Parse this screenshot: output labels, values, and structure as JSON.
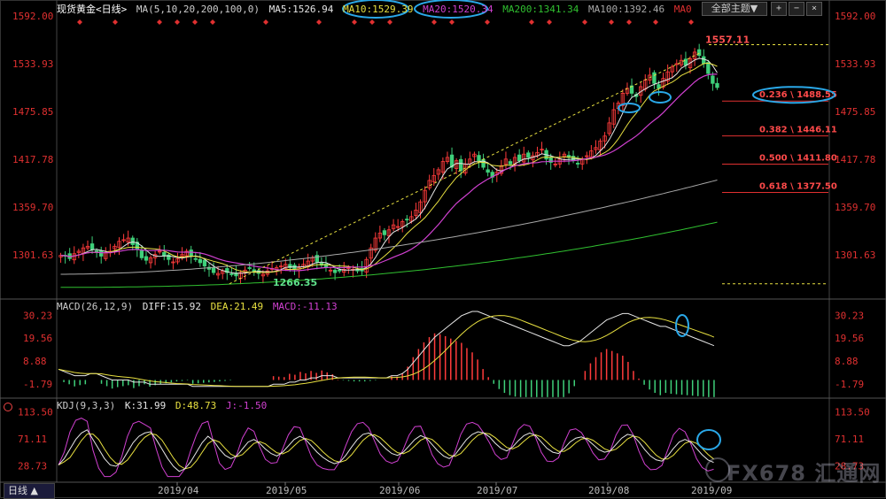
{
  "header": {
    "title": "现货黄金<日线>",
    "ma_params": "MA(5,10,20,200,100,0)",
    "ma5": "MA5:1526.94",
    "ma10": "MA10:1529.39",
    "ma20": "MA20:1520.34",
    "ma200": "MA200:1341.34",
    "ma100": "MA100:1392.46",
    "ma0": "MA0",
    "theme_button": "全部主题▼"
  },
  "colors": {
    "up": "#ff3b3b",
    "down": "#3fd07a",
    "ma5": "#e6e6e6",
    "ma10": "#e8e040",
    "ma20": "#d040d0",
    "ma200": "#30c030",
    "ma100": "#a8a8a8",
    "fib": "#e03030",
    "trend": "#e8e040",
    "highlight": "#2aa8e8",
    "axis_text": "#e03030",
    "date_text": "#bbbbbb"
  },
  "price_axis": {
    "labels": [
      "1592.00",
      "1533.93",
      "1475.85",
      "1417.78",
      "1359.70",
      "1301.63"
    ]
  },
  "annotations": {
    "high": "1557.11",
    "low": "1266.35",
    "fib": [
      "0.236 \\ 1488.55",
      "0.382 \\ 1446.11",
      "0.500 \\ 1411.80",
      "0.618 \\ 1377.50"
    ]
  },
  "macd": {
    "header_params": "MACD(26,12,9)",
    "diff": "DIFF:15.92",
    "dea": "DEA:21.49",
    "macd": "MACD:-11.13",
    "axis": [
      "30.23",
      "19.56",
      "8.88",
      "-1.79"
    ]
  },
  "kdj": {
    "header_params": "KDJ(9,3,3)",
    "k": "K:31.99",
    "d": "D:48.73",
    "j": "J:-1.50",
    "axis": [
      "113.50",
      "71.11",
      "28.73"
    ]
  },
  "dates": [
    "2019/04",
    "2019/05",
    "2019/06",
    "2019/07",
    "2019/08",
    "2019/09"
  ],
  "period_tab": "日线 ▲",
  "watermark": "FX678 汇通网",
  "chart_data": {
    "type": "candlestick",
    "title": "现货黄金<日线>",
    "x_range": [
      "2019/03",
      "2019/09"
    ],
    "ylim": [
      1250,
      1592
    ],
    "swing_low": 1266.35,
    "swing_high": 1557.11,
    "fibonacci_levels": [
      {
        "ratio": 0.236,
        "price": 1488.55
      },
      {
        "ratio": 0.382,
        "price": 1446.11
      },
      {
        "ratio": 0.5,
        "price": 1411.8
      },
      {
        "ratio": 0.618,
        "price": 1377.5
      }
    ],
    "moving_averages": {
      "MA5": 1526.94,
      "MA10": 1529.39,
      "MA20": 1520.34,
      "MA200": 1341.34,
      "MA100": 1392.46
    },
    "indicators": {
      "MACD": {
        "params": "26,12,9",
        "DIFF": 15.92,
        "DEA": 21.49,
        "MACD": -11.13,
        "axis": [
          30.23,
          19.56,
          8.88,
          -1.79
        ]
      },
      "KDJ": {
        "params": "9,3,3",
        "K": 31.99,
        "D": 48.73,
        "J": -1.5,
        "axis": [
          113.5,
          71.11,
          28.73
        ]
      }
    },
    "x_tick_labels": [
      "2019/04",
      "2019/05",
      "2019/06",
      "2019/07",
      "2019/08",
      "2019/09"
    ],
    "y_tick_labels": [
      1592.0,
      1533.93,
      1475.85,
      1417.78,
      1359.7,
      1301.63
    ],
    "close_path": [
      1301,
      1300,
      1297,
      1303,
      1306,
      1310,
      1312,
      1308,
      1305,
      1300,
      1304,
      1306,
      1312,
      1318,
      1320,
      1322,
      1314,
      1308,
      1298,
      1295,
      1298,
      1302,
      1306,
      1300,
      1296,
      1293,
      1297,
      1302,
      1306,
      1300,
      1296,
      1292,
      1288,
      1284,
      1280,
      1279,
      1282,
      1280,
      1278,
      1276,
      1280,
      1283,
      1285,
      1281,
      1279,
      1278,
      1282,
      1285,
      1286,
      1288,
      1290,
      1286,
      1284,
      1286,
      1290,
      1294,
      1298,
      1293,
      1289,
      1286,
      1283,
      1280,
      1282,
      1284,
      1286,
      1284,
      1282,
      1282,
      1296,
      1310,
      1322,
      1328,
      1326,
      1332,
      1338,
      1336,
      1342,
      1344,
      1348,
      1356,
      1366,
      1380,
      1392,
      1398,
      1405,
      1415,
      1420,
      1408,
      1416,
      1404,
      1412,
      1418,
      1424,
      1416,
      1408,
      1402,
      1396,
      1402,
      1410,
      1418,
      1412,
      1420,
      1416,
      1424,
      1420,
      1422,
      1426,
      1430,
      1418,
      1414,
      1412,
      1418,
      1424,
      1420,
      1416,
      1412,
      1418,
      1422,
      1428,
      1432,
      1440,
      1446,
      1462,
      1478,
      1486,
      1498,
      1504,
      1498,
      1494,
      1506,
      1514,
      1520,
      1510,
      1504,
      1516,
      1524,
      1530,
      1534,
      1538,
      1532,
      1540,
      1548,
      1544,
      1534,
      1522,
      1510,
      1505
    ],
    "macd_diff_path": [
      5,
      4,
      3,
      2,
      2,
      2,
      3,
      3,
      2,
      1,
      0,
      0,
      0,
      0,
      -1,
      -1,
      -1,
      -2,
      -2,
      -2,
      -2,
      -2,
      -2,
      -2,
      -2,
      -3,
      -3,
      -3,
      -3,
      -3,
      -3,
      -3,
      -3,
      -3,
      -3,
      -3,
      -3,
      -3,
      -3,
      -3,
      -2,
      -2,
      -2,
      -1,
      -1,
      0,
      0,
      1,
      1,
      2,
      2,
      2,
      1,
      1,
      1,
      1,
      1,
      1,
      1,
      1,
      1,
      1,
      2,
      2,
      3,
      5,
      8,
      11,
      14,
      17,
      20,
      22,
      24,
      26,
      28,
      30,
      31,
      32,
      32,
      31,
      30,
      29,
      28,
      27,
      26,
      25,
      24,
      23,
      22,
      21,
      20,
      19,
      18,
      17,
      16,
      16,
      17,
      18,
      20,
      22,
      24,
      26,
      28,
      29,
      30,
      31,
      31,
      30,
      29,
      28,
      27,
      26,
      25,
      25,
      24,
      23,
      22,
      21,
      20,
      19,
      18,
      17,
      16
    ],
    "kdj_k_path": [
      30,
      40,
      55,
      70,
      80,
      85,
      70,
      55,
      40,
      30,
      28,
      35,
      50,
      65,
      75,
      80,
      82,
      70,
      55,
      40,
      28,
      20,
      24,
      35,
      50,
      65,
      75,
      68,
      55,
      45,
      40,
      44,
      55,
      66,
      70,
      64,
      55,
      48,
      44,
      50,
      60,
      70,
      75,
      70,
      60,
      50,
      42,
      36,
      32,
      35,
      45,
      58,
      70,
      78,
      80,
      74,
      64,
      55,
      48,
      45,
      50,
      60,
      70,
      76,
      72,
      62,
      52,
      44,
      40,
      46,
      58,
      70,
      78,
      82,
      80,
      74,
      64,
      56,
      52,
      58,
      68,
      76,
      80,
      76,
      66,
      56,
      50,
      48,
      56,
      66,
      72,
      74,
      70,
      62,
      54,
      50,
      52,
      62,
      72,
      78,
      76,
      66,
      54,
      44,
      38,
      36,
      44,
      56,
      66,
      70,
      66,
      56,
      46,
      38,
      34
    ]
  }
}
